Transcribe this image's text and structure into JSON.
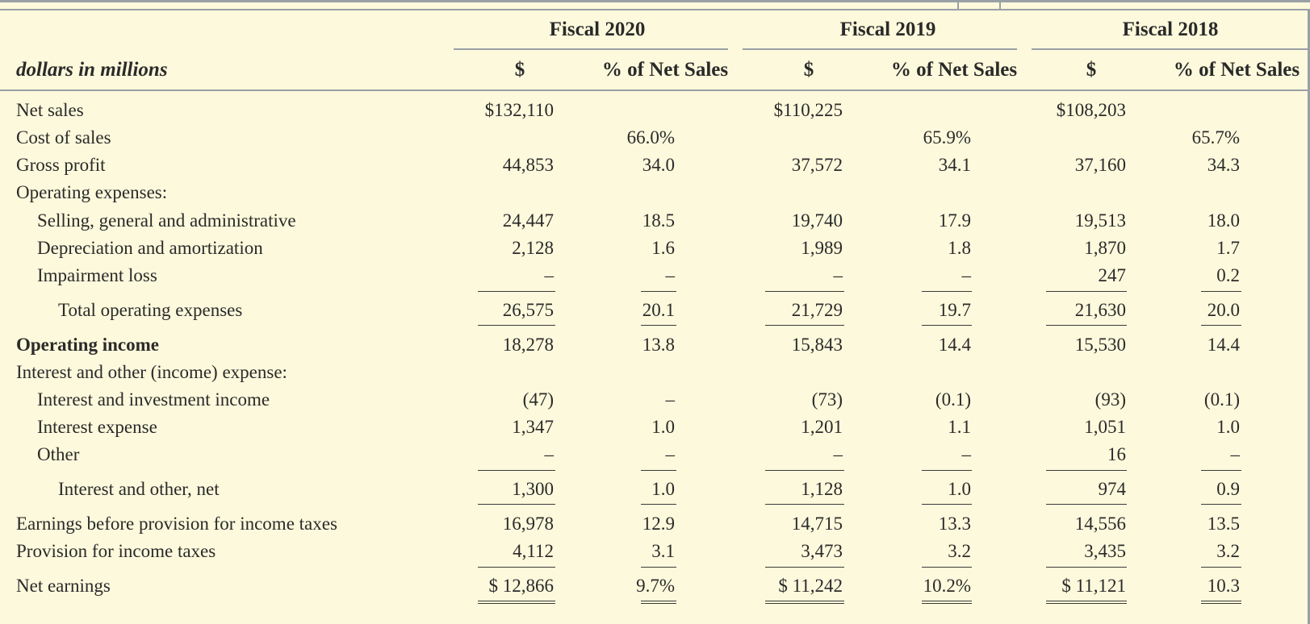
{
  "header": {
    "dimension_label": "dollars in millions",
    "fiscal_years": [
      "Fiscal 2020",
      "Fiscal 2019",
      "Fiscal 2018"
    ],
    "columns": [
      "$",
      "% of Net Sales",
      "$",
      "% of Net Sales",
      "$",
      "% of Net Sales"
    ]
  },
  "rows": [
    {
      "label": "Net sales",
      "values": [
        "$132,110",
        "",
        "$110,225",
        "",
        "$108,203",
        ""
      ]
    },
    {
      "label": "Cost of sales",
      "values": [
        "",
        "66.0%",
        "",
        "65.9%",
        "",
        "65.7%"
      ]
    },
    {
      "label": "Gross profit",
      "values": [
        "44,853",
        "34.0",
        "37,572",
        "34.1",
        "37,160",
        "34.3"
      ]
    },
    {
      "label": "Operating expenses:",
      "values": [
        "",
        "",
        "",
        "",
        "",
        ""
      ]
    },
    {
      "label": "Selling, general and administrative",
      "values": [
        "24,447",
        "18.5",
        "19,740",
        "17.9",
        "19,513",
        "18.0"
      ]
    },
    {
      "label": "Depreciation and amortization",
      "values": [
        "2,128",
        "1.6",
        "1,989",
        "1.8",
        "1,870",
        "1.7"
      ]
    },
    {
      "label": "Impairment loss",
      "values": [
        "–",
        "–",
        "–",
        "–",
        "247",
        "0.2"
      ]
    },
    {
      "label": "Total operating expenses",
      "values": [
        "26,575",
        "20.1",
        "21,729",
        "19.7",
        "21,630",
        "20.0"
      ]
    },
    {
      "label": "Operating income",
      "values": [
        "18,278",
        "13.8",
        "15,843",
        "14.4",
        "15,530",
        "14.4"
      ]
    },
    {
      "label": "Interest and other (income) expense:",
      "values": [
        "",
        "",
        "",
        "",
        "",
        ""
      ]
    },
    {
      "label": "Interest and investment income",
      "values": [
        "(47)",
        "–",
        "(73)",
        "(0.1)",
        "(93)",
        "(0.1)"
      ]
    },
    {
      "label": "Interest expense",
      "values": [
        "1,347",
        "1.0",
        "1,201",
        "1.1",
        "1,051",
        "1.0"
      ]
    },
    {
      "label": "Other",
      "values": [
        "–",
        "–",
        "–",
        "–",
        "16",
        "–"
      ]
    },
    {
      "label": "Interest and other, net",
      "values": [
        "1,300",
        "1.0",
        "1,128",
        "1.0",
        "974",
        "0.9"
      ]
    },
    {
      "label": "Earnings before provision for income taxes",
      "values": [
        "16,978",
        "12.9",
        "14,715",
        "13.3",
        "14,556",
        "13.5"
      ]
    },
    {
      "label": "Provision for income taxes",
      "values": [
        "4,112",
        "3.1",
        "3,473",
        "3.2",
        "3,435",
        "3.2"
      ]
    },
    {
      "label": "Net earnings",
      "values": [
        "$ 12,866",
        "9.7%",
        "$ 11,242",
        "10.2%",
        "$ 11,121",
        "10.3"
      ]
    }
  ]
}
